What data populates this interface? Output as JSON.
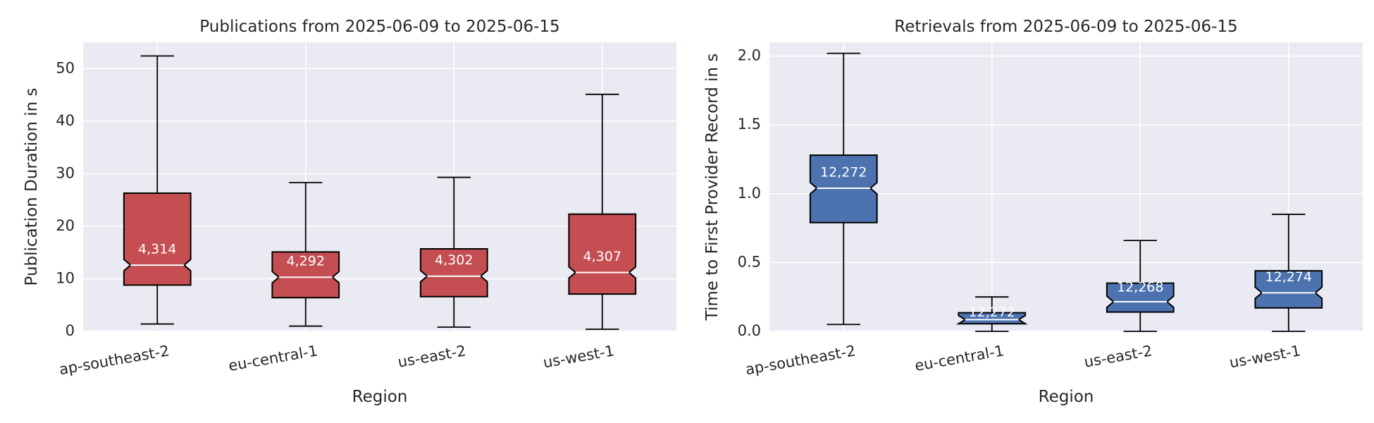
{
  "chart_data": [
    {
      "type": "box",
      "title": "Publications from 2025-06-09 to 2025-06-15",
      "xlabel": "Region",
      "ylabel": "Publication Duration in s",
      "ylim": [
        0,
        55
      ],
      "yticks": [
        0,
        10,
        20,
        30,
        40,
        50
      ],
      "ytick_labels": [
        "0",
        "10",
        "20",
        "30",
        "40",
        "50"
      ],
      "grid": true,
      "notched": true,
      "color": "#c44e52",
      "categories": [
        "ap-southeast-2",
        "eu-central-1",
        "us-east-2",
        "us-west-1"
      ],
      "boxes": [
        {
          "whisker_low": 1.4,
          "q1": 8.8,
          "median": 12.6,
          "q3": 26.3,
          "whisker_high": 52.4,
          "count": "4,314"
        },
        {
          "whisker_low": 1.0,
          "q1": 6.4,
          "median": 10.3,
          "q3": 15.1,
          "whisker_high": 28.3,
          "count": "4,292"
        },
        {
          "whisker_low": 0.8,
          "q1": 6.6,
          "median": 10.5,
          "q3": 15.7,
          "whisker_high": 29.3,
          "count": "4,302"
        },
        {
          "whisker_low": 0.4,
          "q1": 7.1,
          "median": 11.2,
          "q3": 22.3,
          "whisker_high": 45.1,
          "count": "4,307"
        }
      ]
    },
    {
      "type": "box",
      "title": "Retrievals from 2025-06-09 to 2025-06-15",
      "xlabel": "Region",
      "ylabel": "Time to First Provider Record in s",
      "ylim": [
        0,
        2.1
      ],
      "yticks": [
        0,
        0.5,
        1.0,
        1.5,
        2.0
      ],
      "ytick_labels": [
        "0.0",
        "0.5",
        "1.0",
        "1.5",
        "2.0"
      ],
      "grid": true,
      "notched": true,
      "color": "#4c72b0",
      "categories": [
        "ap-southeast-2",
        "eu-central-1",
        "us-east-2",
        "us-west-1"
      ],
      "boxes": [
        {
          "whisker_low": 0.05,
          "q1": 0.79,
          "median": 1.04,
          "q3": 1.28,
          "whisker_high": 2.02,
          "count": "12,272"
        },
        {
          "whisker_low": 0.0,
          "q1": 0.055,
          "median": 0.085,
          "q3": 0.135,
          "whisker_high": 0.25,
          "count": "12,272"
        },
        {
          "whisker_low": 0.0,
          "q1": 0.14,
          "median": 0.215,
          "q3": 0.35,
          "whisker_high": 0.66,
          "count": "12,268"
        },
        {
          "whisker_low": 0.0,
          "q1": 0.17,
          "median": 0.28,
          "q3": 0.44,
          "whisker_high": 0.85,
          "count": "12,274"
        }
      ]
    }
  ]
}
